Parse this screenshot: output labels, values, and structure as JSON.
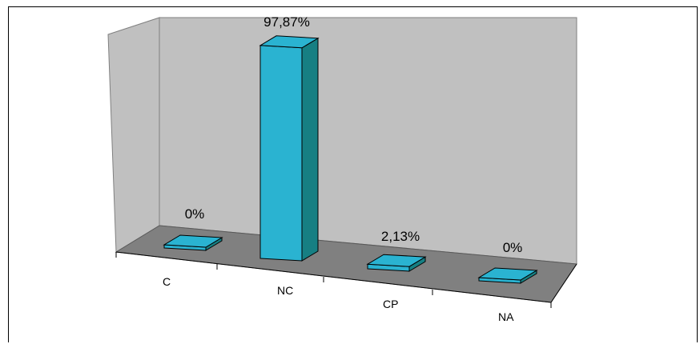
{
  "chart_data": {
    "type": "bar",
    "categories": [
      "C",
      "NC",
      "CP",
      "NA"
    ],
    "values": [
      0,
      97.87,
      2.13,
      0
    ],
    "data_labels": [
      "0%",
      "97,87%",
      "2,13%",
      "0%"
    ],
    "ylim": [
      0,
      100
    ],
    "grid": false,
    "legend": "none",
    "colors": {
      "bar_front": "#2ab3d1",
      "bar_side": "#167f83",
      "bar_top": "#2ab3d1",
      "back_wall": "#c0c0c0",
      "floor": "#808080"
    }
  }
}
